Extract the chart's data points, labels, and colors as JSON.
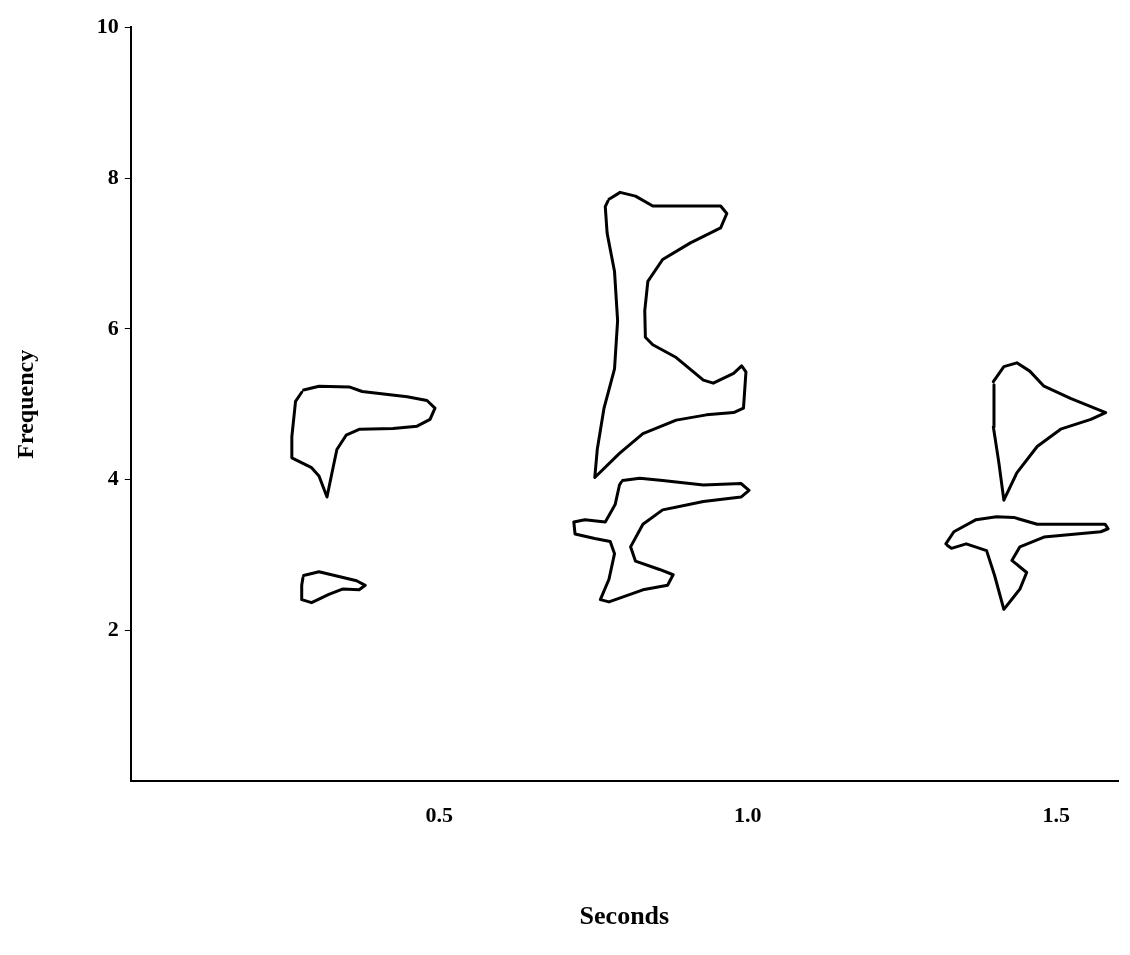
{
  "chart_data": {
    "type": "line",
    "xlabel": "Seconds",
    "ylabel": "Frequency",
    "xlim": [
      0,
      1.6
    ],
    "xticks": [
      0.5,
      {
        "value": 1,
        "label": "1.0"
      },
      1.5
    ],
    "ylim": [
      0,
      10
    ],
    "yticks": [
      2,
      4,
      6,
      8,
      10
    ],
    "grid": false,
    "legend": false,
    "marker": "none",
    "line_style": "solid",
    "series": [
      {
        "color": "#000000",
        "x": [
          0.28,
          0.305,
          0.354,
          0.375,
          0.448,
          0.48,
          0.493,
          0.485,
          0.464,
          0.425,
          0.371,
          0.349,
          0.334,
          0.325,
          0.318,
          0.305,
          0.293,
          0.261,
          0.261,
          0.267,
          0.277
        ],
        "values": [
          5.19,
          5.24,
          5.23,
          5.17,
          5.1,
          5.05,
          4.95,
          4.8,
          4.71,
          4.68,
          4.67,
          4.59,
          4.4,
          4.05,
          3.77,
          4.05,
          4.16,
          4.29,
          4.57,
          5.04,
          5.16
        ]
      },
      {
        "color": "#000000",
        "x": [
          0.28,
          0.305,
          0.366,
          0.38,
          0.37,
          0.343,
          0.321,
          0.293,
          0.277,
          0.277,
          0.279
        ],
        "values": [
          2.73,
          2.78,
          2.66,
          2.6,
          2.54,
          2.55,
          2.48,
          2.37,
          2.41,
          2.6,
          2.7
        ]
      },
      {
        "color": "#000000",
        "x": [
          0.775,
          0.793,
          0.818,
          0.846,
          0.879,
          0.956,
          0.966,
          0.956,
          0.907,
          0.862,
          0.838,
          0.833,
          0.834,
          0.846,
          0.884,
          0.928,
          0.944,
          0.977,
          0.99,
          0.997,
          0.993,
          0.977,
          0.933,
          0.884,
          0.83,
          0.792,
          0.752,
          0.756,
          0.767,
          0.784,
          0.789,
          0.784,
          0.772,
          0.769,
          0.773
        ],
        "values": [
          7.72,
          7.81,
          7.76,
          7.63,
          7.63,
          7.63,
          7.53,
          7.34,
          7.14,
          6.92,
          6.63,
          6.24,
          5.89,
          5.79,
          5.62,
          5.32,
          5.28,
          5.41,
          5.51,
          5.43,
          4.95,
          4.89,
          4.86,
          4.79,
          4.61,
          4.35,
          4.03,
          4.4,
          4.95,
          5.47,
          6.11,
          6.76,
          7.27,
          7.62,
          7.69
        ]
      },
      {
        "color": "#000000",
        "x": [
          0.797,
          0.825,
          0.862,
          0.928,
          0.989,
          1.002,
          0.989,
          0.928,
          0.862,
          0.83,
          0.81,
          0.818,
          0.857,
          0.879,
          0.87,
          0.83,
          0.775,
          0.761,
          0.775,
          0.784,
          0.777,
          0.752,
          0.72,
          0.718,
          0.736,
          0.769,
          0.785,
          0.792,
          0.795
        ],
        "values": [
          3.99,
          4.02,
          3.99,
          3.93,
          3.95,
          3.86,
          3.77,
          3.71,
          3.6,
          3.41,
          3.11,
          2.92,
          2.81,
          2.74,
          2.6,
          2.54,
          2.38,
          2.41,
          2.68,
          3.02,
          3.18,
          3.22,
          3.28,
          3.44,
          3.47,
          3.44,
          3.67,
          3.93,
          3.97
        ]
      },
      {
        "color": "#000000",
        "x": [
          1.398,
          1.415,
          1.436,
          1.457,
          1.48,
          1.523,
          1.58,
          1.556,
          1.507,
          1.469,
          1.436,
          1.415,
          1.407,
          1.398,
          1.399
        ],
        "values": [
          5.3,
          5.5,
          5.55,
          5.44,
          5.24,
          5.08,
          4.89,
          4.8,
          4.67,
          4.44,
          4.09,
          3.73,
          4.22,
          4.7,
          5.26
        ]
      },
      {
        "color": "#000000",
        "x": [
          1.321,
          1.334,
          1.37,
          1.403,
          1.431,
          1.469,
          1.579,
          1.584,
          1.572,
          1.48,
          1.441,
          1.428,
          1.452,
          1.441,
          1.415,
          1.4,
          1.387,
          1.354,
          1.33,
          1.323
        ],
        "values": [
          3.15,
          3.31,
          3.47,
          3.51,
          3.5,
          3.41,
          3.41,
          3.35,
          3.31,
          3.24,
          3.11,
          2.93,
          2.77,
          2.55,
          2.28,
          2.73,
          3.06,
          3.15,
          3.09,
          3.13
        ]
      }
    ]
  }
}
